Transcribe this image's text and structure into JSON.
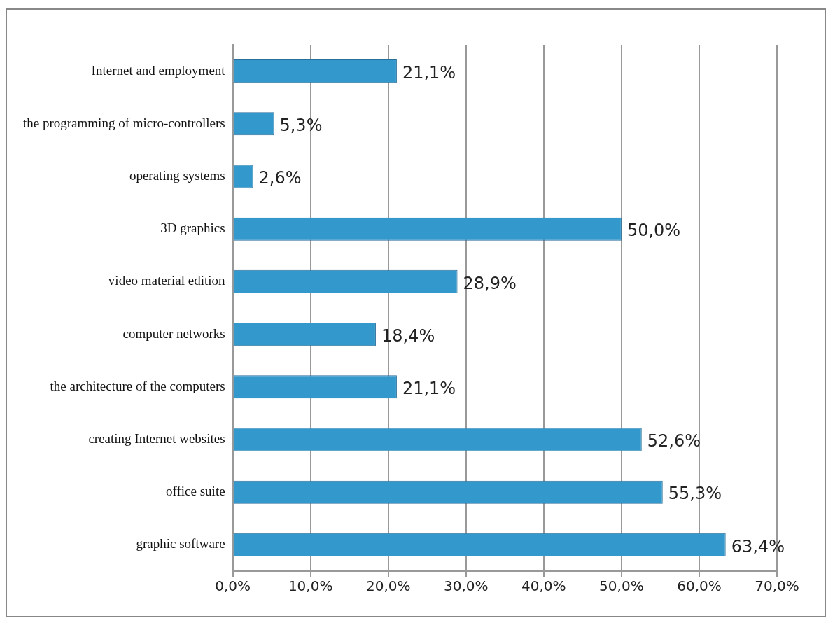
{
  "chart_data": {
    "type": "bar",
    "orientation": "horizontal",
    "categories": [
      "Internet and employment",
      "the programming of micro-controllers",
      "operating systems",
      "3D graphics",
      "video material edition",
      "computer networks",
      "the architecture of the computers",
      "creating Internet websites",
      "office suite",
      "graphic software"
    ],
    "values": [
      21.1,
      5.3,
      2.6,
      50.0,
      28.9,
      18.4,
      21.1,
      52.6,
      55.3,
      63.4
    ],
    "value_labels": [
      "21,1%",
      "5,3%",
      "2,6%",
      "50,0%",
      "28,9%",
      "18,4%",
      "21,1%",
      "52,6%",
      "55,3%",
      "63,4%"
    ],
    "color": "#3399cc",
    "xlim": [
      0,
      70
    ],
    "xticks": [
      {
        "value": 0,
        "label": "0,0%"
      },
      {
        "value": 10,
        "label": "10,0%"
      },
      {
        "value": 20,
        "label": "20,0%"
      },
      {
        "value": 30,
        "label": "30,0%"
      },
      {
        "value": 40,
        "label": "40,0%"
      },
      {
        "value": 50,
        "label": "50,0%"
      },
      {
        "value": 60,
        "label": "60,0%"
      },
      {
        "value": 70,
        "label": "70,0%"
      }
    ],
    "grid": "x",
    "legend": false
  }
}
